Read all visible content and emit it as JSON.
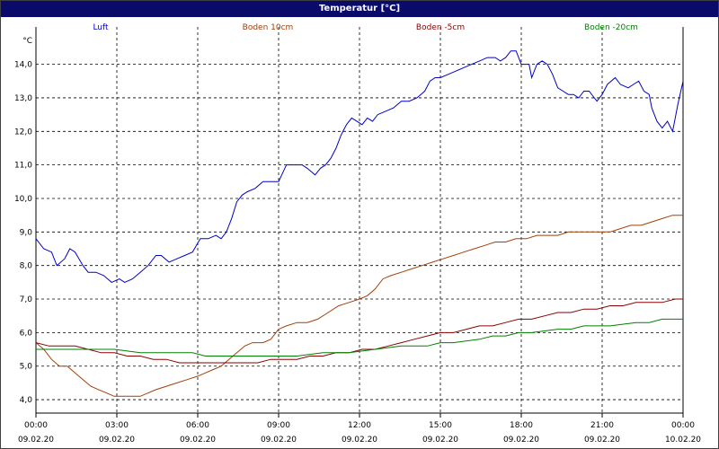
{
  "title": "Temperatur [°C]",
  "chart_data": {
    "type": "line",
    "title": "Temperatur [°C]",
    "ylabel": "°C",
    "ylim": [
      3.6,
      14.9
    ],
    "yticks": [
      "4,0",
      "5,0",
      "6,0",
      "7,0",
      "8,0",
      "9,0",
      "10,0",
      "11,0",
      "12,0",
      "13,0",
      "14,0"
    ],
    "ytick_values": [
      4,
      5,
      6,
      7,
      8,
      9,
      10,
      11,
      12,
      13,
      14
    ],
    "xlim": [
      0,
      24
    ],
    "xtick_hours": [
      0,
      3,
      6,
      9,
      12,
      15,
      18,
      21,
      24
    ],
    "xtick_times": [
      "00:00",
      "03:00",
      "06:00",
      "09:00",
      "12:00",
      "15:00",
      "18:00",
      "21:00",
      "00:00"
    ],
    "xtick_dates": [
      "09.02.20",
      "09.02.20",
      "09.02.20",
      "09.02.20",
      "09.02.20",
      "09.02.20",
      "09.02.20",
      "09.02.20",
      "10.02.20"
    ],
    "grid": true,
    "legend_placement": "top",
    "series": [
      {
        "name": "Luft",
        "color": "#0000c8",
        "points": [
          [
            0,
            8.8
          ],
          [
            0.3,
            8.5
          ],
          [
            0.6,
            8.4
          ],
          [
            0.8,
            8.0
          ],
          [
            1.1,
            8.2
          ],
          [
            1.3,
            8.5
          ],
          [
            1.5,
            8.4
          ],
          [
            1.8,
            8.0
          ],
          [
            2.0,
            7.8
          ],
          [
            2.3,
            7.8
          ],
          [
            2.6,
            7.7
          ],
          [
            2.9,
            7.5
          ],
          [
            3.2,
            7.6
          ],
          [
            3.4,
            7.5
          ],
          [
            3.7,
            7.6
          ],
          [
            4.0,
            7.8
          ],
          [
            4.3,
            8.0
          ],
          [
            4.6,
            8.3
          ],
          [
            4.8,
            8.3
          ],
          [
            5.1,
            8.1
          ],
          [
            5.4,
            8.2
          ],
          [
            5.7,
            8.3
          ],
          [
            6.0,
            8.4
          ],
          [
            6.3,
            8.8
          ],
          [
            6.6,
            8.8
          ],
          [
            6.9,
            8.9
          ],
          [
            7.1,
            8.8
          ],
          [
            7.3,
            9.0
          ],
          [
            7.5,
            9.4
          ],
          [
            7.7,
            9.9
          ],
          [
            7.9,
            10.1
          ],
          [
            8.1,
            10.2
          ],
          [
            8.4,
            10.3
          ],
          [
            8.7,
            10.5
          ],
          [
            9.0,
            10.5
          ],
          [
            9.3,
            10.5
          ],
          [
            9.6,
            11.0
          ],
          [
            9.9,
            11.0
          ],
          [
            10.2,
            11.0
          ],
          [
            10.4,
            10.9
          ],
          [
            10.7,
            10.7
          ],
          [
            10.9,
            10.9
          ],
          [
            11.1,
            11.0
          ],
          [
            11.3,
            11.2
          ],
          [
            11.5,
            11.5
          ],
          [
            11.7,
            11.9
          ],
          [
            11.9,
            12.2
          ],
          [
            12.1,
            12.4
          ],
          [
            12.3,
            12.3
          ],
          [
            12.5,
            12.2
          ],
          [
            12.7,
            12.4
          ],
          [
            12.9,
            12.3
          ],
          [
            13.1,
            12.5
          ],
          [
            13.4,
            12.6
          ],
          [
            13.7,
            12.7
          ],
          [
            14.0,
            12.9
          ],
          [
            14.3,
            12.9
          ],
          [
            14.6,
            13.0
          ],
          [
            14.9,
            13.2
          ],
          [
            15.1,
            13.5
          ],
          [
            15.3,
            13.6
          ],
          [
            15.5,
            13.6
          ],
          [
            15.8,
            13.7
          ],
          [
            16.1,
            13.8
          ],
          [
            16.4,
            13.9
          ],
          [
            16.7,
            14.0
          ],
          [
            17.0,
            14.1
          ],
          [
            17.3,
            14.2
          ],
          [
            17.6,
            14.2
          ],
          [
            17.8,
            14.1
          ],
          [
            18.0,
            14.2
          ],
          [
            18.2,
            14.4
          ],
          [
            18.4,
            14.4
          ],
          [
            18.6,
            14.0
          ],
          [
            18.9,
            14.0
          ],
          [
            19.0,
            13.6
          ],
          [
            19.2,
            14.0
          ],
          [
            19.4,
            14.1
          ],
          [
            19.6,
            14.0
          ],
          [
            19.8,
            13.7
          ],
          [
            20.0,
            13.3
          ],
          [
            20.2,
            13.2
          ],
          [
            20.4,
            13.1
          ],
          [
            20.6,
            13.1
          ],
          [
            20.8,
            13.0
          ],
          [
            21.0,
            13.2
          ],
          [
            21.2,
            13.2
          ],
          [
            21.4,
            13.0
          ],
          [
            21.5,
            12.9
          ],
          [
            21.7,
            13.1
          ],
          [
            21.9,
            13.4
          ],
          [
            22.2,
            13.6
          ],
          [
            22.4,
            13.4
          ],
          [
            22.7,
            13.3
          ],
          [
            22.9,
            13.4
          ],
          [
            23.1,
            13.5
          ],
          [
            23.3,
            13.2
          ],
          [
            23.5,
            13.1
          ],
          [
            23.6,
            12.7
          ],
          [
            23.8,
            12.3
          ],
          [
            24.0,
            12.1
          ],
          [
            24.2,
            12.3
          ],
          [
            24.4,
            12.0
          ],
          [
            24.6,
            12.8
          ],
          [
            24.8,
            13.5
          ]
        ]
      },
      {
        "name": "Boden 10cm",
        "color": "#a0400a",
        "points": [
          [
            0,
            5.7
          ],
          [
            0.3,
            5.5
          ],
          [
            0.6,
            5.2
          ],
          [
            0.9,
            5.0
          ],
          [
            1.2,
            5.0
          ],
          [
            1.5,
            4.8
          ],
          [
            1.8,
            4.6
          ],
          [
            2.1,
            4.4
          ],
          [
            2.4,
            4.3
          ],
          [
            2.7,
            4.2
          ],
          [
            3.0,
            4.1
          ],
          [
            3.5,
            4.1
          ],
          [
            4.0,
            4.1
          ],
          [
            4.3,
            4.2
          ],
          [
            4.6,
            4.3
          ],
          [
            5.0,
            4.4
          ],
          [
            5.4,
            4.5
          ],
          [
            5.8,
            4.6
          ],
          [
            6.2,
            4.7
          ],
          [
            6.5,
            4.8
          ],
          [
            6.8,
            4.9
          ],
          [
            7.1,
            5.0
          ],
          [
            7.4,
            5.2
          ],
          [
            7.7,
            5.4
          ],
          [
            8.0,
            5.6
          ],
          [
            8.3,
            5.7
          ],
          [
            8.7,
            5.7
          ],
          [
            9.0,
            5.8
          ],
          [
            9.3,
            6.1
          ],
          [
            9.6,
            6.2
          ],
          [
            10.0,
            6.3
          ],
          [
            10.4,
            6.3
          ],
          [
            10.8,
            6.4
          ],
          [
            11.2,
            6.6
          ],
          [
            11.6,
            6.8
          ],
          [
            12.0,
            6.9
          ],
          [
            12.4,
            7.0
          ],
          [
            12.7,
            7.1
          ],
          [
            13.0,
            7.3
          ],
          [
            13.3,
            7.6
          ],
          [
            13.6,
            7.7
          ],
          [
            14.0,
            7.8
          ],
          [
            14.4,
            7.9
          ],
          [
            14.8,
            8.0
          ],
          [
            15.2,
            8.1
          ],
          [
            15.6,
            8.2
          ],
          [
            16.0,
            8.3
          ],
          [
            16.4,
            8.4
          ],
          [
            16.8,
            8.5
          ],
          [
            17.2,
            8.6
          ],
          [
            17.6,
            8.7
          ],
          [
            18.0,
            8.7
          ],
          [
            18.4,
            8.8
          ],
          [
            18.8,
            8.8
          ],
          [
            19.2,
            8.9
          ],
          [
            19.6,
            8.9
          ],
          [
            20.0,
            8.9
          ],
          [
            20.4,
            9.0
          ],
          [
            20.8,
            9.0
          ],
          [
            21.2,
            9.0
          ],
          [
            21.6,
            9.0
          ],
          [
            22.0,
            9.0
          ],
          [
            22.4,
            9.1
          ],
          [
            22.8,
            9.2
          ],
          [
            23.2,
            9.2
          ],
          [
            23.6,
            9.3
          ],
          [
            24.0,
            9.4
          ],
          [
            24.4,
            9.5
          ],
          [
            24.8,
            9.5
          ]
        ]
      },
      {
        "name": "Boden -5cm",
        "color": "#8a0000",
        "points": [
          [
            0,
            5.7
          ],
          [
            0.5,
            5.6
          ],
          [
            1.0,
            5.6
          ],
          [
            1.5,
            5.6
          ],
          [
            2.0,
            5.5
          ],
          [
            2.5,
            5.4
          ],
          [
            3.0,
            5.4
          ],
          [
            3.5,
            5.3
          ],
          [
            4.0,
            5.3
          ],
          [
            4.5,
            5.2
          ],
          [
            5.0,
            5.2
          ],
          [
            5.5,
            5.1
          ],
          [
            6.0,
            5.1
          ],
          [
            6.5,
            5.1
          ],
          [
            7.0,
            5.1
          ],
          [
            7.5,
            5.1
          ],
          [
            8.0,
            5.1
          ],
          [
            8.5,
            5.1
          ],
          [
            9.0,
            5.2
          ],
          [
            9.5,
            5.2
          ],
          [
            10.0,
            5.2
          ],
          [
            10.5,
            5.3
          ],
          [
            11.0,
            5.3
          ],
          [
            11.5,
            5.4
          ],
          [
            12.0,
            5.4
          ],
          [
            12.5,
            5.5
          ],
          [
            13.0,
            5.5
          ],
          [
            13.5,
            5.6
          ],
          [
            14.0,
            5.7
          ],
          [
            14.5,
            5.8
          ],
          [
            15.0,
            5.9
          ],
          [
            15.5,
            6.0
          ],
          [
            16.0,
            6.0
          ],
          [
            16.5,
            6.1
          ],
          [
            17.0,
            6.2
          ],
          [
            17.5,
            6.2
          ],
          [
            18.0,
            6.3
          ],
          [
            18.5,
            6.4
          ],
          [
            19.0,
            6.4
          ],
          [
            19.5,
            6.5
          ],
          [
            20.0,
            6.6
          ],
          [
            20.5,
            6.6
          ],
          [
            21.0,
            6.7
          ],
          [
            21.5,
            6.7
          ],
          [
            22.0,
            6.8
          ],
          [
            22.5,
            6.8
          ],
          [
            23.0,
            6.9
          ],
          [
            23.5,
            6.9
          ],
          [
            24.0,
            6.9
          ],
          [
            24.5,
            7.0
          ],
          [
            24.8,
            7.0
          ]
        ]
      },
      {
        "name": "Boden -20cm",
        "color": "#008000",
        "points": [
          [
            0,
            5.5
          ],
          [
            1.0,
            5.5
          ],
          [
            2.0,
            5.5
          ],
          [
            3.0,
            5.5
          ],
          [
            4.0,
            5.4
          ],
          [
            5.0,
            5.4
          ],
          [
            6.0,
            5.4
          ],
          [
            6.5,
            5.3
          ],
          [
            7.0,
            5.3
          ],
          [
            8.0,
            5.3
          ],
          [
            9.0,
            5.3
          ],
          [
            10.0,
            5.3
          ],
          [
            11.0,
            5.4
          ],
          [
            12.0,
            5.4
          ],
          [
            13.0,
            5.5
          ],
          [
            14.0,
            5.6
          ],
          [
            15.0,
            5.6
          ],
          [
            15.5,
            5.7
          ],
          [
            16.0,
            5.7
          ],
          [
            17.0,
            5.8
          ],
          [
            17.5,
            5.9
          ],
          [
            18.0,
            5.9
          ],
          [
            18.5,
            6.0
          ],
          [
            19.0,
            6.0
          ],
          [
            20.0,
            6.1
          ],
          [
            20.5,
            6.1
          ],
          [
            21.0,
            6.2
          ],
          [
            22.0,
            6.2
          ],
          [
            23.0,
            6.3
          ],
          [
            23.5,
            6.3
          ],
          [
            24.0,
            6.4
          ],
          [
            24.8,
            6.4
          ]
        ]
      }
    ]
  }
}
